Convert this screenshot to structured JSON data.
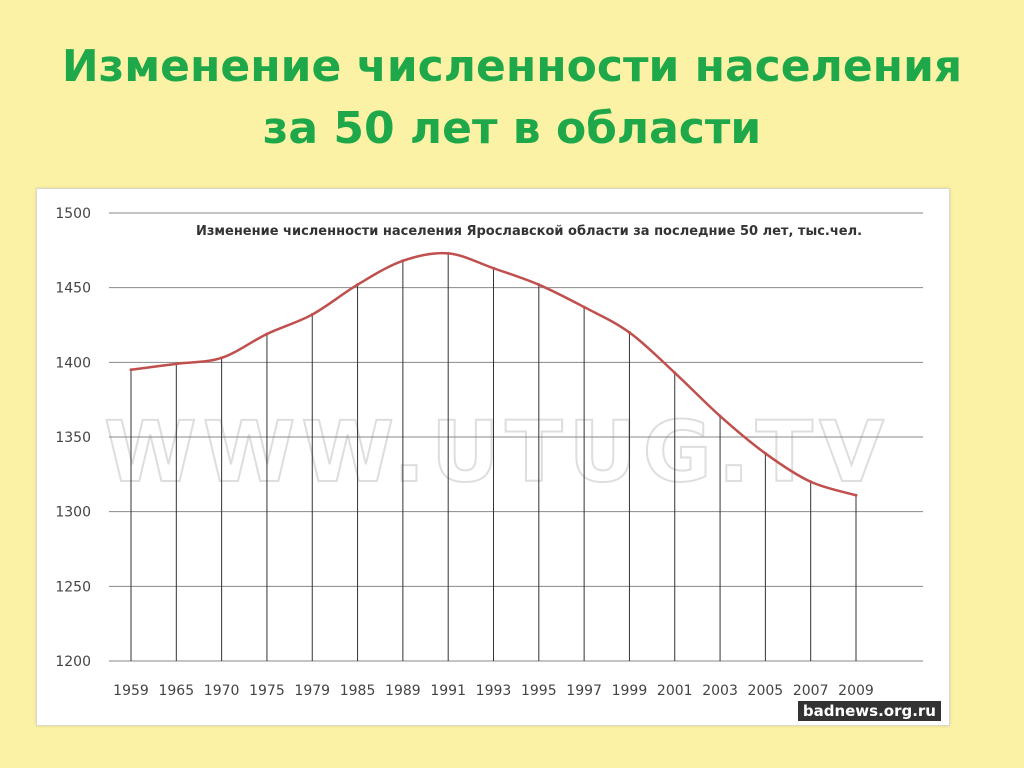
{
  "slide": {
    "title_line1": "Изменение численности населения",
    "title_line2": "за 50 лет в области"
  },
  "watermark": "WWW.UTUG.TV",
  "credit": "badnews.org.ru",
  "colors": {
    "background": "#fbf2a6",
    "title": "#1ea84a",
    "series_line": "#c0504d",
    "grid": "#888888"
  },
  "chart_data": {
    "type": "line",
    "title": "Изменение численности населения Ярославской области за последние 50 лет, тыс.чел.",
    "xlabel": "",
    "ylabel": "",
    "categories": [
      "1959",
      "1965",
      "1970",
      "1975",
      "1979",
      "1985",
      "1989",
      "1991",
      "1993",
      "1995",
      "1997",
      "1999",
      "2001",
      "2003",
      "2005",
      "2007",
      "2009"
    ],
    "series": [
      {
        "values": [
          1395,
          1399,
          1403,
          1419,
          1432,
          1452,
          1468,
          1473,
          1463,
          1452,
          1437,
          1420,
          1393,
          1364,
          1339,
          1320,
          1311
        ]
      }
    ],
    "ylim": [
      1200,
      1500
    ],
    "yticks": [
      1200,
      1250,
      1300,
      1350,
      1400,
      1450,
      1500
    ],
    "grid": true,
    "legend": "none"
  }
}
